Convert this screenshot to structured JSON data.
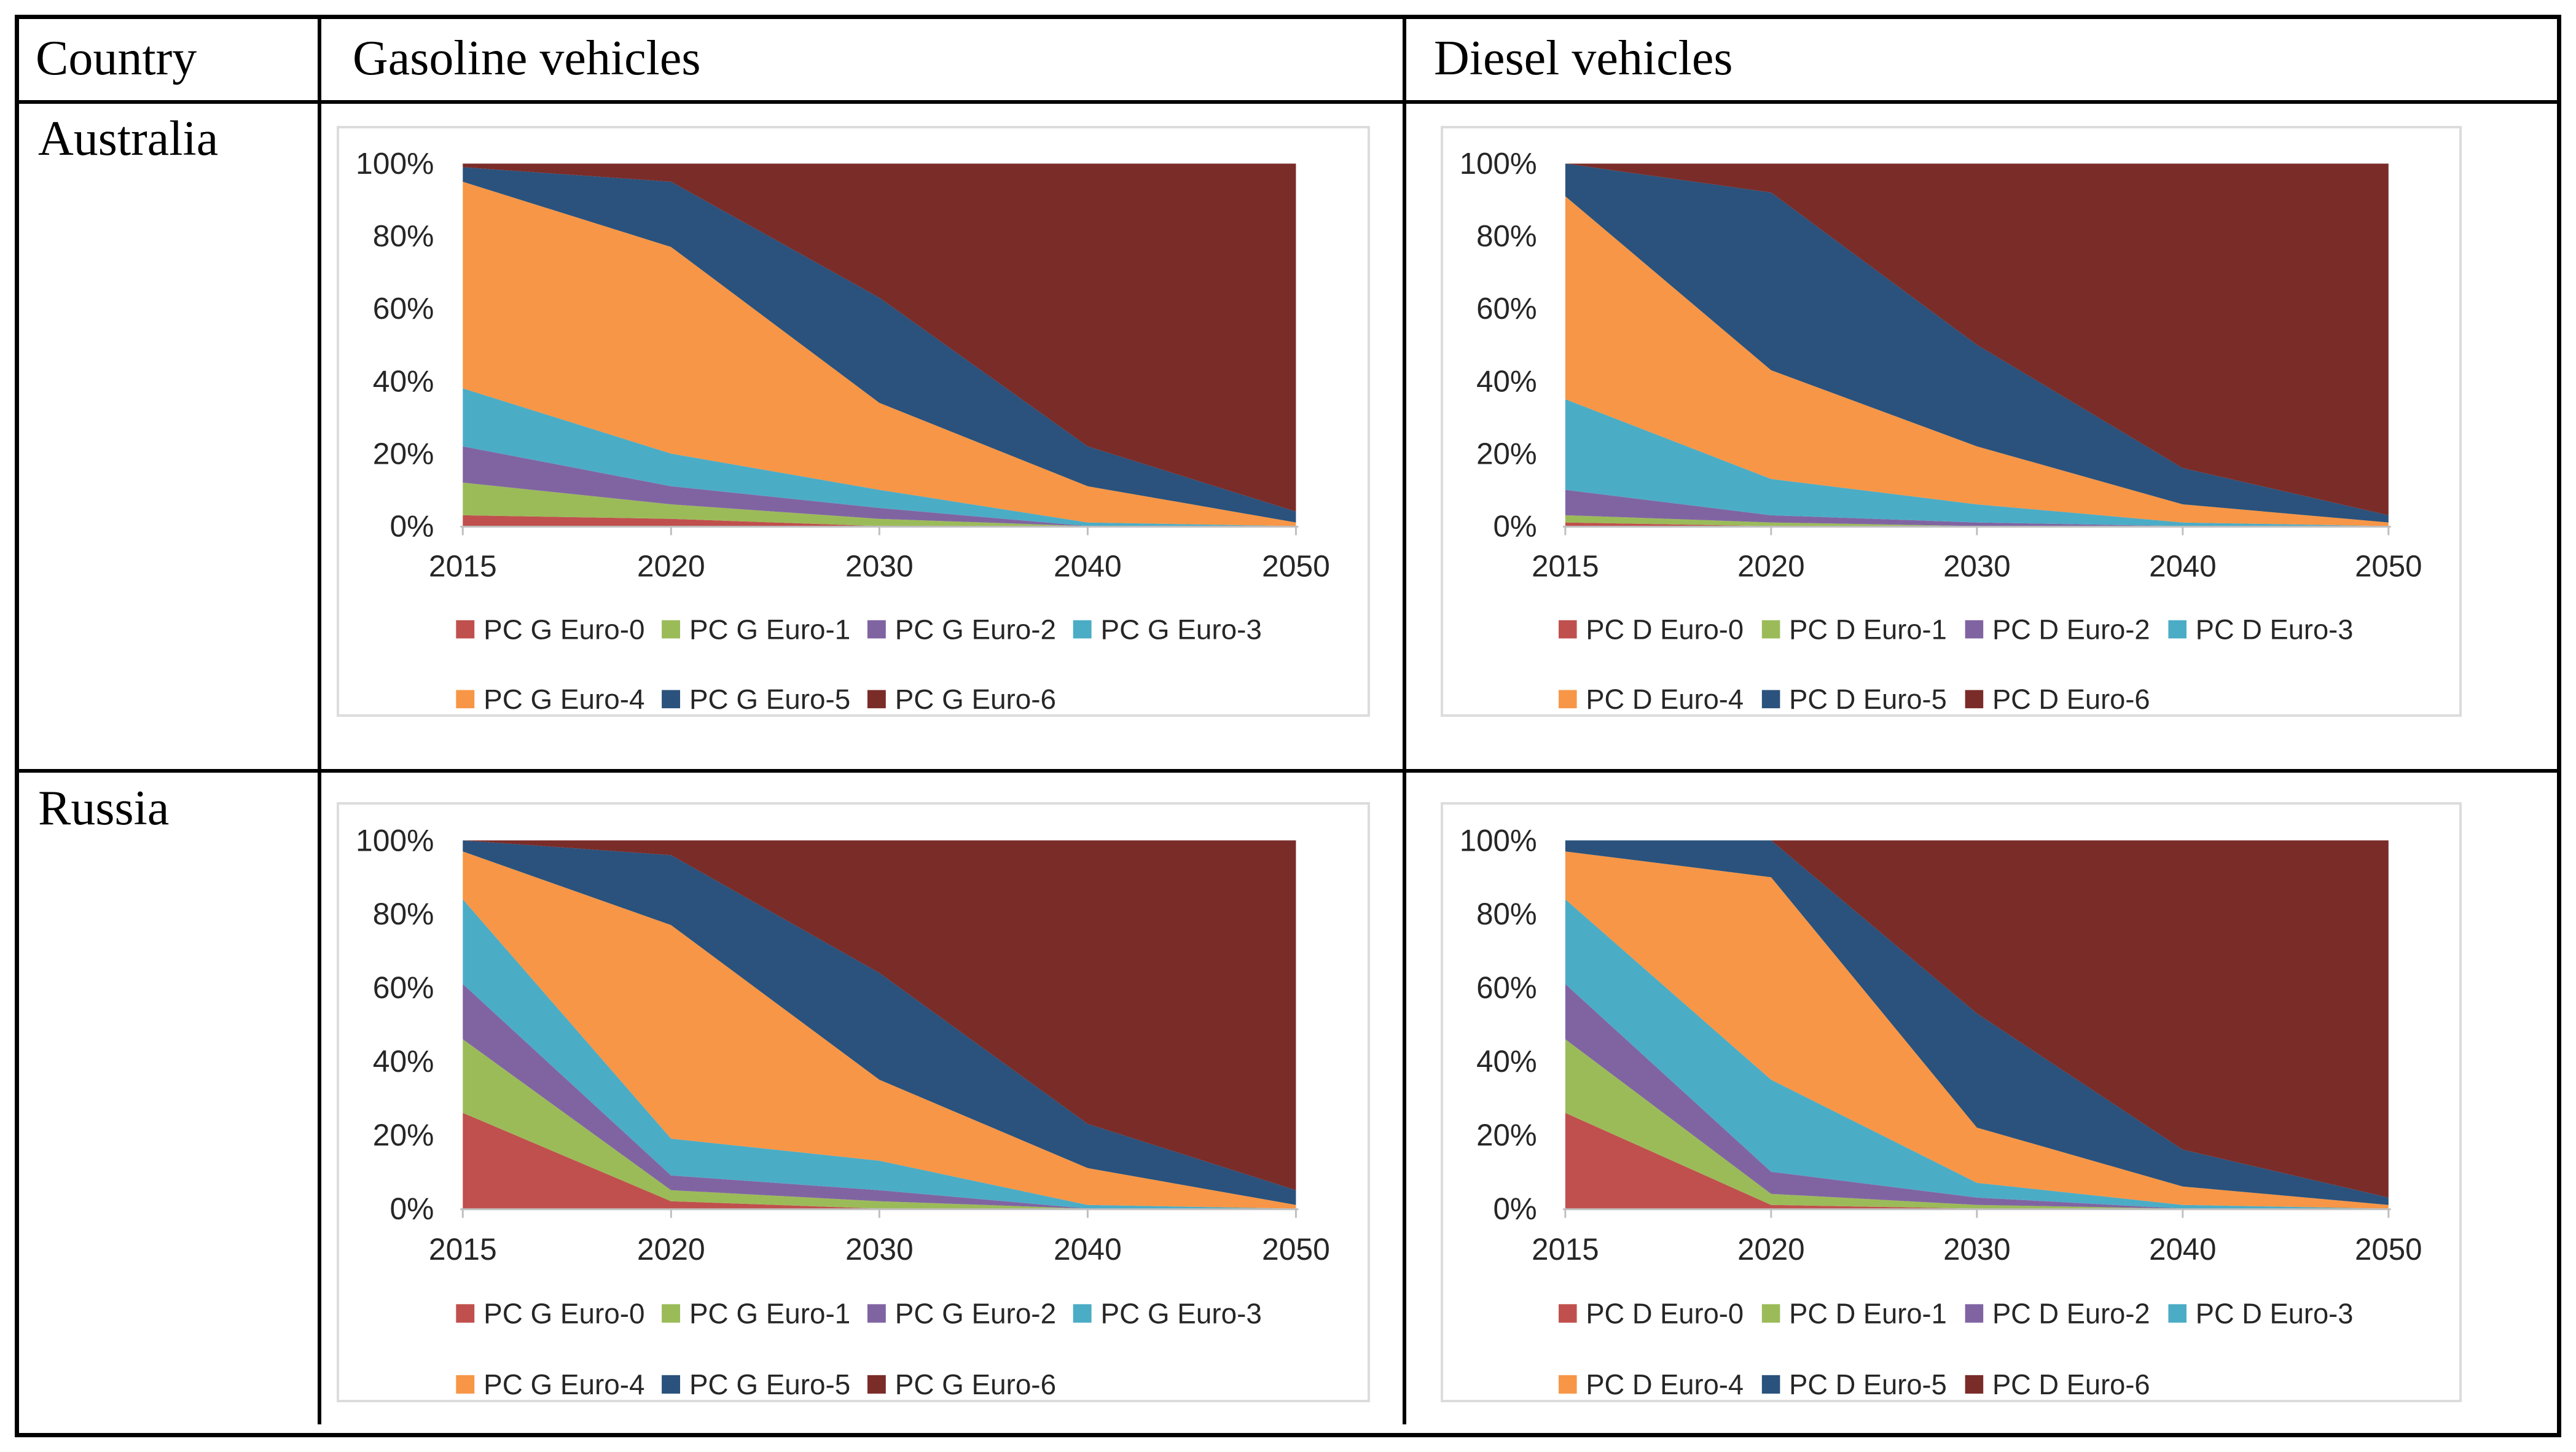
{
  "table": {
    "header": {
      "country": "Country",
      "gasoline": "Gasoline vehicles",
      "diesel": "Diesel vehicles"
    },
    "row_labels": {
      "australia": "Australia",
      "russia": "Russia"
    }
  },
  "style": {
    "series_colors": [
      "#c0504d",
      "#9bbb59",
      "#8064a2",
      "#4bacc6",
      "#f79646",
      "#2a527c",
      "#7a2c29"
    ],
    "axis_line_color": "#bfbfbf",
    "chart_border_color": "#dcdcdc",
    "chart_text_color": "#262626",
    "table_border_color": "#000000"
  },
  "chart_data": [
    {
      "id": "australia-gasoline",
      "country": "Australia",
      "column": "Gasoline vehicles",
      "type": "area",
      "stacked": true,
      "unit": "percent of fleet",
      "x_labels": [
        "2015",
        "2020",
        "2030",
        "2040",
        "2050"
      ],
      "y_tick_labels": [
        "0%",
        "20%",
        "40%",
        "60%",
        "80%",
        "100%"
      ],
      "ylim": [
        0,
        100
      ],
      "grid": false,
      "legend_position": "bottom",
      "legend_rows": [
        4,
        3
      ],
      "series": [
        {
          "name": "PC G Euro-0",
          "values": [
            3,
            2,
            0,
            0,
            0
          ]
        },
        {
          "name": "PC G Euro-1",
          "values": [
            9,
            4,
            2,
            0,
            0
          ]
        },
        {
          "name": "PC G Euro-2",
          "values": [
            10,
            5,
            3,
            0,
            0
          ]
        },
        {
          "name": "PC G Euro-3",
          "values": [
            16,
            9,
            5,
            1,
            0
          ]
        },
        {
          "name": "PC G Euro-4",
          "values": [
            57,
            57,
            24,
            10,
            1
          ]
        },
        {
          "name": "PC G Euro-5",
          "values": [
            4,
            18,
            29,
            11,
            3
          ]
        },
        {
          "name": "PC G Euro-6",
          "values": [
            1,
            5,
            37,
            78,
            96
          ]
        }
      ]
    },
    {
      "id": "australia-diesel",
      "country": "Australia",
      "column": "Diesel vehicles",
      "type": "area",
      "stacked": true,
      "unit": "percent of fleet",
      "x_labels": [
        "2015",
        "2020",
        "2030",
        "2040",
        "2050"
      ],
      "y_tick_labels": [
        "0%",
        "20%",
        "40%",
        "60%",
        "80%",
        "100%"
      ],
      "ylim": [
        0,
        100
      ],
      "grid": false,
      "legend_position": "bottom",
      "legend_rows": [
        4,
        3
      ],
      "series": [
        {
          "name": "PC D Euro-0",
          "values": [
            1,
            0,
            0,
            0,
            0
          ]
        },
        {
          "name": "PC D Euro-1",
          "values": [
            2,
            1,
            0,
            0,
            0
          ]
        },
        {
          "name": "PC D Euro-2",
          "values": [
            7,
            2,
            1,
            0,
            0
          ]
        },
        {
          "name": "PC D Euro-3",
          "values": [
            25,
            10,
            5,
            1,
            0
          ]
        },
        {
          "name": "PC D Euro-4",
          "values": [
            56,
            30,
            16,
            5,
            1
          ]
        },
        {
          "name": "PC D Euro-5",
          "values": [
            9,
            49,
            28,
            10,
            2
          ]
        },
        {
          "name": "PC D Euro-6",
          "values": [
            0,
            8,
            50,
            84,
            97
          ]
        }
      ]
    },
    {
      "id": "russia-gasoline",
      "country": "Russia",
      "column": "Gasoline vehicles",
      "type": "area",
      "stacked": true,
      "unit": "percent of fleet",
      "x_labels": [
        "2015",
        "2020",
        "2030",
        "2040",
        "2050"
      ],
      "y_tick_labels": [
        "0%",
        "20%",
        "40%",
        "60%",
        "80%",
        "100%"
      ],
      "ylim": [
        0,
        100
      ],
      "grid": false,
      "legend_position": "bottom",
      "legend_rows": [
        4,
        3
      ],
      "series": [
        {
          "name": "PC G Euro-0",
          "values": [
            26,
            2,
            0,
            0,
            0
          ]
        },
        {
          "name": "PC G Euro-1",
          "values": [
            20,
            3,
            2,
            0,
            0
          ]
        },
        {
          "name": "PC G Euro-2",
          "values": [
            15,
            4,
            3,
            0,
            0
          ]
        },
        {
          "name": "PC G Euro-3",
          "values": [
            23,
            10,
            8,
            1,
            0
          ]
        },
        {
          "name": "PC G Euro-4",
          "values": [
            13,
            58,
            22,
            10,
            1
          ]
        },
        {
          "name": "PC G Euro-5",
          "values": [
            3,
            19,
            29,
            12,
            4
          ]
        },
        {
          "name": "PC G Euro-6",
          "values": [
            0,
            4,
            36,
            77,
            95
          ]
        }
      ]
    },
    {
      "id": "russia-diesel",
      "country": "Russia",
      "column": "Diesel vehicles",
      "type": "area",
      "stacked": true,
      "unit": "percent of fleet",
      "x_labels": [
        "2015",
        "2020",
        "2030",
        "2040",
        "2050"
      ],
      "y_tick_labels": [
        "0%",
        "20%",
        "40%",
        "60%",
        "80%",
        "100%"
      ],
      "ylim": [
        0,
        100
      ],
      "grid": false,
      "legend_position": "bottom",
      "legend_rows": [
        4,
        3
      ],
      "series": [
        {
          "name": "PC D Euro-0",
          "values": [
            26,
            1,
            0,
            0,
            0
          ]
        },
        {
          "name": "PC D Euro-1",
          "values": [
            20,
            3,
            1,
            0,
            0
          ]
        },
        {
          "name": "PC D Euro-2",
          "values": [
            15,
            6,
            2,
            0,
            0
          ]
        },
        {
          "name": "PC D Euro-3",
          "values": [
            23,
            25,
            4,
            1,
            0
          ]
        },
        {
          "name": "PC D Euro-4",
          "values": [
            13,
            55,
            15,
            5,
            1
          ]
        },
        {
          "name": "PC D Euro-5",
          "values": [
            3,
            10,
            31,
            10,
            2
          ]
        },
        {
          "name": "PC D Euro-6",
          "values": [
            0,
            0,
            47,
            84,
            97
          ]
        }
      ]
    }
  ]
}
